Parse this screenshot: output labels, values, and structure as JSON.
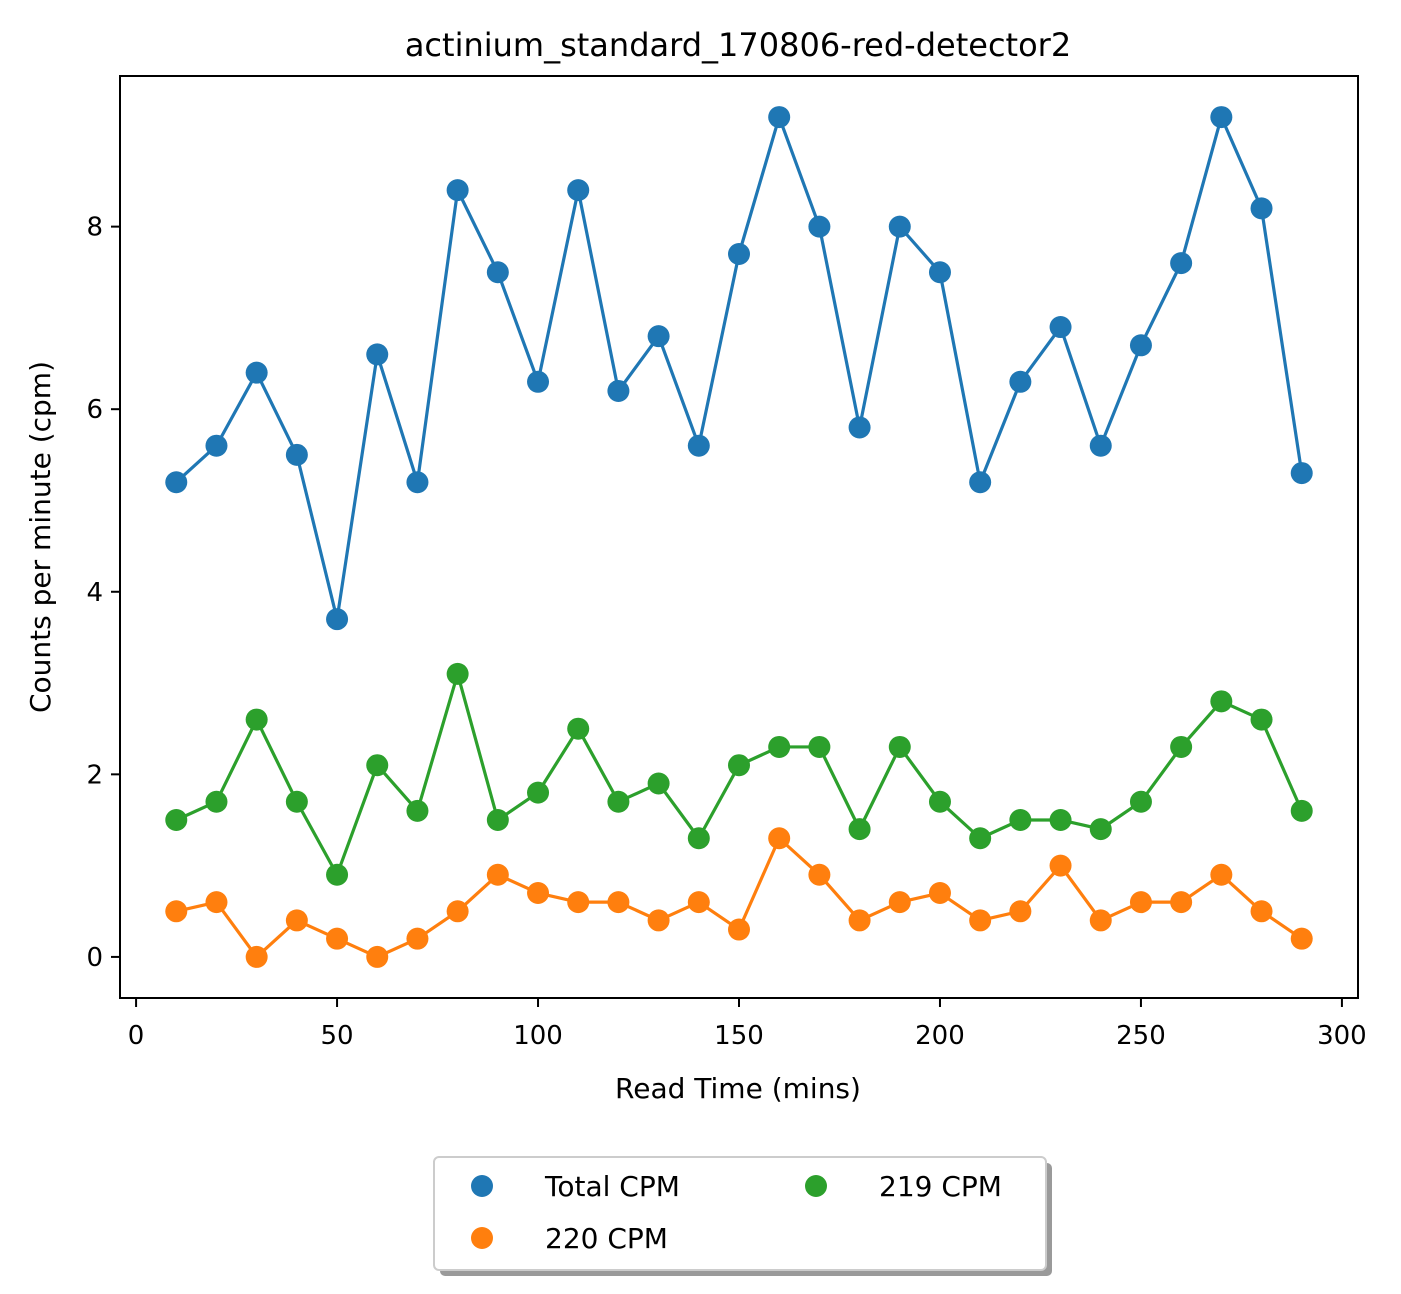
{
  "chart_data": {
    "type": "line",
    "title": "actinium_standard_170806-red-detector2",
    "xlabel": "Read Time (mins)",
    "ylabel": "Counts per minute (cpm)",
    "xlim": [
      -4,
      304
    ],
    "ylim": [
      -0.45,
      9.65
    ],
    "xticks": [
      0,
      50,
      100,
      150,
      200,
      250,
      300
    ],
    "yticks": [
      0,
      2,
      4,
      6,
      8
    ],
    "grid": false,
    "legend_position": "below-center",
    "x": [
      10,
      20,
      30,
      40,
      50,
      60,
      70,
      80,
      90,
      100,
      110,
      120,
      130,
      140,
      150,
      160,
      170,
      180,
      190,
      200,
      210,
      220,
      230,
      240,
      250,
      260,
      270,
      280,
      290
    ],
    "series": [
      {
        "name": "Total CPM",
        "color": "#1f77b4",
        "values": [
          5.2,
          5.6,
          6.4,
          5.5,
          3.7,
          6.6,
          5.2,
          8.4,
          7.5,
          6.3,
          8.4,
          6.2,
          6.8,
          5.6,
          7.7,
          9.2,
          8.0,
          5.8,
          8.0,
          7.5,
          5.2,
          6.3,
          6.9,
          5.6,
          6.7,
          7.6,
          9.2,
          8.2,
          5.3
        ]
      },
      {
        "name": "220 CPM",
        "color": "#ff7f0e",
        "values": [
          0.5,
          0.6,
          0.0,
          0.4,
          0.2,
          0.0,
          0.2,
          0.5,
          0.9,
          0.7,
          0.6,
          0.6,
          0.4,
          0.6,
          0.3,
          1.3,
          0.9,
          0.4,
          0.6,
          0.7,
          0.4,
          0.5,
          1.0,
          0.4,
          0.6,
          0.6,
          0.9,
          0.5,
          0.2
        ]
      },
      {
        "name": "219 CPM",
        "color": "#2ca02c",
        "values": [
          1.5,
          1.7,
          2.6,
          1.7,
          0.9,
          2.1,
          1.6,
          3.1,
          1.5,
          1.8,
          2.5,
          1.7,
          1.9,
          1.3,
          2.1,
          2.3,
          2.3,
          1.4,
          2.3,
          1.7,
          1.3,
          1.5,
          1.5,
          1.4,
          1.7,
          2.3,
          2.8,
          2.6,
          1.6
        ]
      }
    ]
  }
}
